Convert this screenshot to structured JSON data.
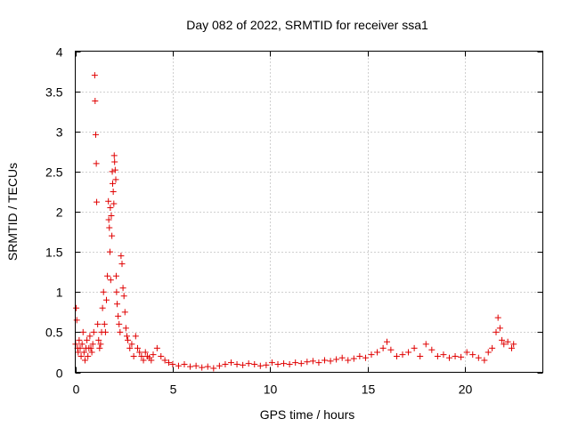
{
  "chart_data": {
    "type": "scatter",
    "title": "Day 082 of 2022, SRMTID for receiver ssa1",
    "xlabel": "GPS time / hours",
    "ylabel": "SRMTID / TECUs",
    "xlim": [
      0,
      24
    ],
    "ylim": [
      0,
      4
    ],
    "xticks": [
      0,
      5,
      10,
      15,
      20
    ],
    "xtick_labels": [
      "0",
      "5",
      "10",
      "15",
      "20"
    ],
    "yticks": [
      0,
      0.5,
      1,
      1.5,
      2,
      2.5,
      3,
      3.5,
      4
    ],
    "ytick_labels": [
      "0",
      "0.5",
      "1",
      "1.5",
      "2",
      "2.5",
      "3",
      "3.5",
      "4"
    ],
    "grid": true,
    "marker": "+",
    "marker_color": "#e00000",
    "series": [
      {
        "name": "SRMTID",
        "x": [
          0.02,
          0.05,
          0.08,
          0.12,
          0.15,
          0.2,
          0.25,
          0.3,
          0.35,
          0.4,
          0.45,
          0.5,
          0.55,
          0.6,
          0.65,
          0.7,
          0.75,
          0.8,
          0.85,
          0.9,
          0.95,
          1.0,
          1.02,
          1.05,
          1.08,
          1.1,
          1.15,
          1.2,
          1.25,
          1.3,
          1.35,
          1.4,
          1.45,
          1.5,
          1.55,
          1.6,
          1.65,
          1.7,
          1.72,
          1.75,
          1.78,
          1.8,
          1.82,
          1.85,
          1.88,
          1.9,
          1.92,
          1.95,
          1.98,
          2.0,
          2.02,
          2.05,
          2.08,
          2.1,
          2.12,
          2.15,
          2.2,
          2.25,
          2.3,
          2.35,
          2.4,
          2.45,
          2.5,
          2.55,
          2.6,
          2.65,
          2.7,
          2.8,
          2.9,
          3.0,
          3.1,
          3.2,
          3.3,
          3.4,
          3.5,
          3.6,
          3.7,
          3.8,
          3.9,
          4.0,
          4.2,
          4.4,
          4.6,
          4.8,
          5.0,
          5.3,
          5.6,
          5.9,
          6.2,
          6.5,
          6.8,
          7.1,
          7.4,
          7.7,
          8.0,
          8.3,
          8.6,
          8.9,
          9.2,
          9.5,
          9.8,
          10.1,
          10.4,
          10.7,
          11.0,
          11.3,
          11.6,
          11.9,
          12.2,
          12.5,
          12.8,
          13.1,
          13.4,
          13.7,
          14.0,
          14.3,
          14.6,
          14.9,
          15.2,
          15.5,
          15.8,
          16.0,
          16.2,
          16.5,
          16.8,
          17.1,
          17.4,
          17.7,
          18.0,
          18.3,
          18.6,
          18.9,
          19.2,
          19.5,
          19.8,
          20.1,
          20.4,
          20.7,
          21.0,
          21.2,
          21.4,
          21.6,
          21.7,
          21.8,
          21.9,
          22.0,
          22.2,
          22.4,
          22.5
        ],
        "y": [
          0.35,
          0.8,
          0.65,
          0.3,
          0.25,
          0.4,
          0.3,
          0.2,
          0.35,
          0.5,
          0.25,
          0.15,
          0.3,
          0.4,
          0.2,
          0.3,
          0.45,
          0.3,
          0.25,
          0.35,
          0.5,
          3.7,
          3.38,
          2.96,
          2.6,
          2.12,
          0.6,
          0.4,
          0.3,
          0.35,
          0.5,
          0.8,
          1.0,
          0.6,
          0.5,
          0.9,
          1.2,
          2.13,
          1.9,
          1.8,
          1.5,
          2.05,
          1.15,
          1.95,
          1.7,
          2.5,
          2.35,
          2.25,
          2.1,
          2.7,
          2.62,
          2.52,
          2.4,
          1.2,
          1.0,
          0.85,
          0.7,
          0.6,
          0.5,
          1.45,
          1.35,
          1.05,
          0.95,
          0.75,
          0.55,
          0.45,
          0.4,
          0.3,
          0.35,
          0.2,
          0.45,
          0.3,
          0.25,
          0.2,
          0.15,
          0.25,
          0.2,
          0.18,
          0.15,
          0.22,
          0.3,
          0.2,
          0.15,
          0.12,
          0.1,
          0.08,
          0.1,
          0.07,
          0.08,
          0.06,
          0.07,
          0.05,
          0.08,
          0.1,
          0.12,
          0.1,
          0.09,
          0.11,
          0.1,
          0.08,
          0.09,
          0.12,
          0.1,
          0.11,
          0.1,
          0.12,
          0.11,
          0.13,
          0.14,
          0.12,
          0.15,
          0.14,
          0.16,
          0.18,
          0.15,
          0.17,
          0.2,
          0.18,
          0.22,
          0.25,
          0.3,
          0.38,
          0.28,
          0.2,
          0.22,
          0.25,
          0.3,
          0.2,
          0.35,
          0.28,
          0.2,
          0.22,
          0.18,
          0.2,
          0.19,
          0.25,
          0.22,
          0.18,
          0.15,
          0.25,
          0.3,
          0.5,
          0.68,
          0.55,
          0.4,
          0.35,
          0.38,
          0.3,
          0.35
        ]
      }
    ]
  }
}
